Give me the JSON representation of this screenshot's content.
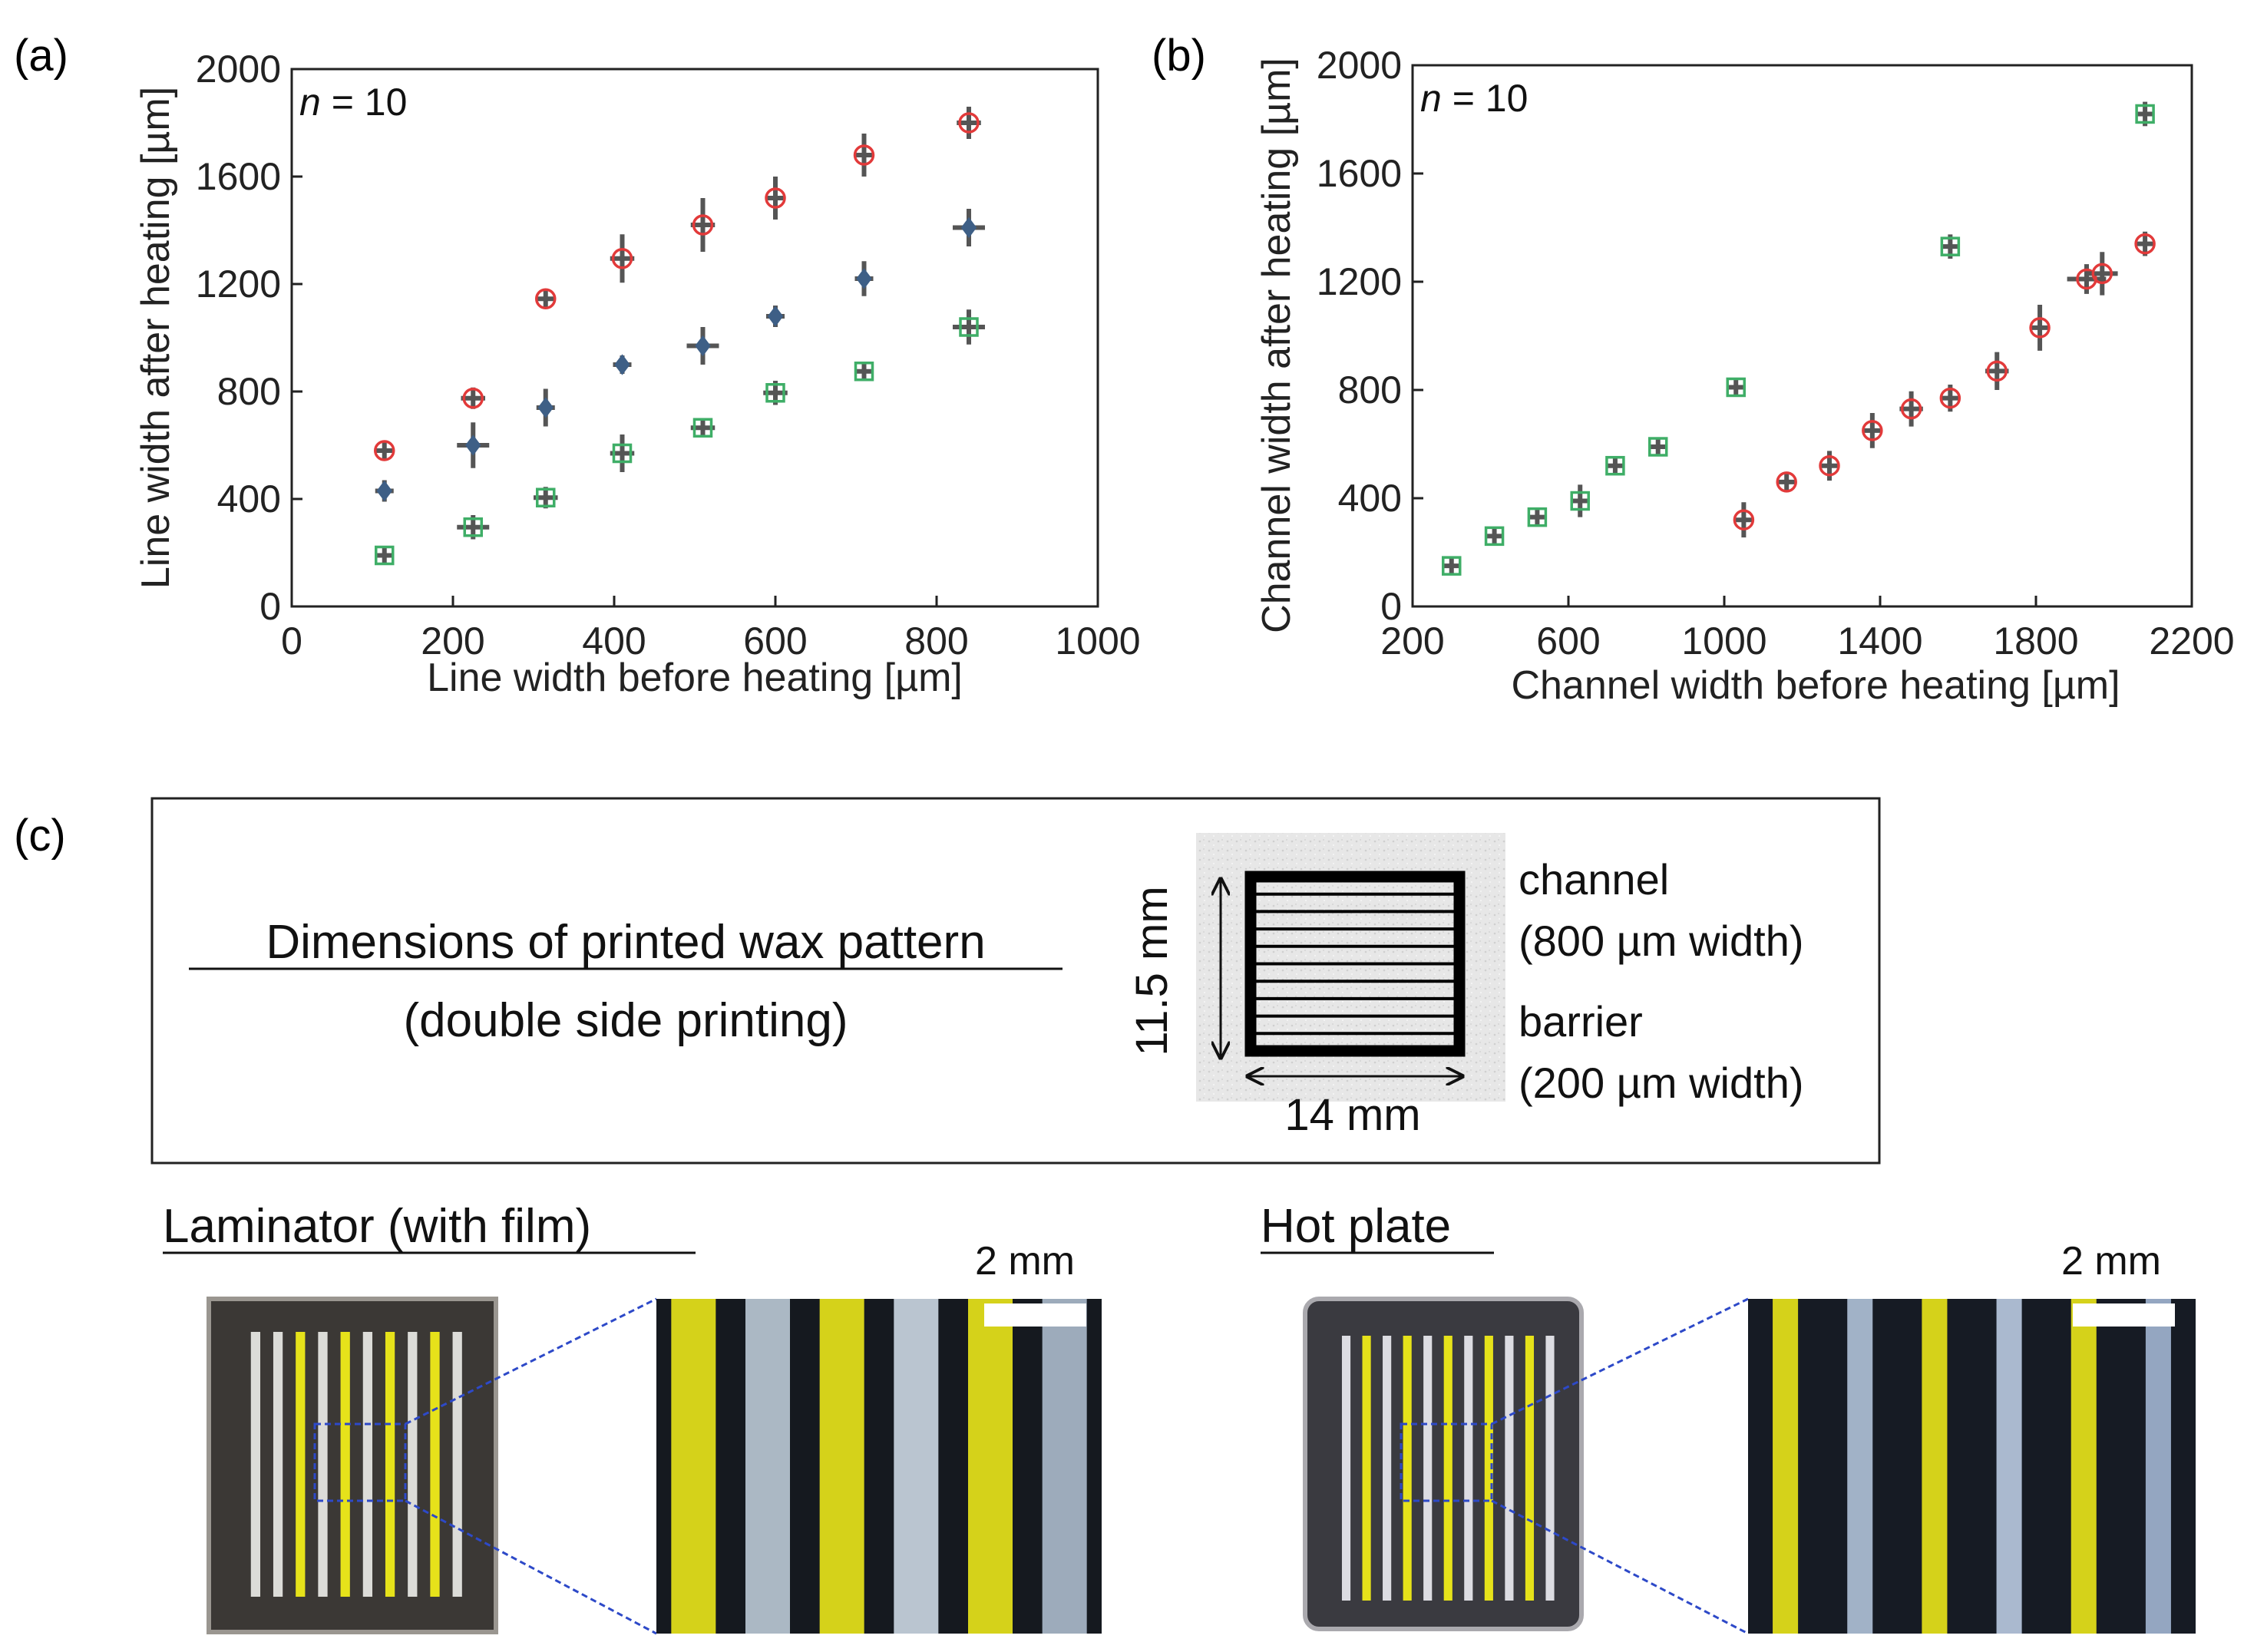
{
  "panels": {
    "a": "(a)",
    "b": "(b)",
    "c": "(c)"
  },
  "colors": {
    "red": "#e23a3a",
    "blue": "#3e5f86",
    "green": "#3fae67",
    "errorbar": "#555555",
    "yellow": "#e6e21a"
  },
  "chart_data": [
    {
      "id": "a",
      "type": "scatter",
      "annotation_prefix": "n",
      "annotation_suffix": " = 10",
      "xlabel": "Line width before heating [µm]",
      "ylabel": "Line width after heating [µm]",
      "xlim": [
        0,
        1000
      ],
      "ylim": [
        0,
        2000
      ],
      "xticks": [
        "0",
        "200",
        "400",
        "600",
        "800",
        "1000"
      ],
      "yticks": [
        "0",
        "400",
        "800",
        "1200",
        "1600",
        "2000"
      ],
      "series": [
        {
          "name": "red circles",
          "marker": "circle",
          "color": "red",
          "points": [
            [
              115,
              580,
              0,
              25
            ],
            [
              225,
              775,
              15,
              40
            ],
            [
              315,
              1145,
              0,
              35
            ],
            [
              410,
              1295,
              15,
              90
            ],
            [
              510,
              1420,
              15,
              100
            ],
            [
              600,
              1520,
              0,
              80
            ],
            [
              710,
              1680,
              0,
              80
            ],
            [
              840,
              1800,
              15,
              60
            ]
          ]
        },
        {
          "name": "blue diamonds",
          "marker": "diamond",
          "color": "blue",
          "points": [
            [
              115,
              430,
              0,
              40
            ],
            [
              225,
              600,
              20,
              85
            ],
            [
              315,
              740,
              10,
              70
            ],
            [
              410,
              900,
              0,
              20
            ],
            [
              510,
              970,
              20,
              70
            ],
            [
              600,
              1080,
              0,
              40
            ],
            [
              710,
              1220,
              0,
              65
            ],
            [
              840,
              1410,
              20,
              70
            ]
          ]
        },
        {
          "name": "green squares",
          "marker": "square",
          "color": "green",
          "points": [
            [
              115,
              190,
              0,
              20
            ],
            [
              225,
              295,
              20,
              45
            ],
            [
              315,
              405,
              15,
              40
            ],
            [
              410,
              570,
              15,
              70
            ],
            [
              510,
              665,
              15,
              35
            ],
            [
              600,
              795,
              15,
              45
            ],
            [
              710,
              875,
              0,
              20
            ],
            [
              840,
              1040,
              20,
              65
            ]
          ]
        }
      ]
    },
    {
      "id": "b",
      "type": "scatter",
      "annotation_prefix": "n",
      "annotation_suffix": " = 10",
      "xlabel": "Channel width before heating [µm]",
      "ylabel": "Channel width after heating [µm]",
      "xlim": [
        200,
        2200
      ],
      "ylim": [
        0,
        2000
      ],
      "xticks": [
        "200",
        "600",
        "1000",
        "1400",
        "1800",
        "2200"
      ],
      "yticks": [
        "0",
        "400",
        "800",
        "1200",
        "1600",
        "2000"
      ],
      "series": [
        {
          "name": "green squares",
          "marker": "square",
          "color": "green",
          "points": [
            [
              300,
              150,
              15,
              30
            ],
            [
              410,
              260,
              20,
              25
            ],
            [
              520,
              330,
              20,
              35
            ],
            [
              630,
              390,
              20,
              60
            ],
            [
              720,
              520,
              20,
              35
            ],
            [
              830,
              590,
              20,
              25
            ],
            [
              1030,
              810,
              20,
              30
            ],
            [
              1580,
              1330,
              20,
              45
            ],
            [
              2080,
              1820,
              20,
              45
            ]
          ]
        },
        {
          "name": "red circles",
          "marker": "circle",
          "color": "red",
          "points": [
            [
              1050,
              320,
              20,
              65
            ],
            [
              1160,
              460,
              0,
              25
            ],
            [
              1270,
              520,
              20,
              55
            ],
            [
              1380,
              650,
              20,
              65
            ],
            [
              1480,
              730,
              30,
              65
            ],
            [
              1580,
              770,
              20,
              50
            ],
            [
              1700,
              870,
              30,
              70
            ],
            [
              1810,
              1030,
              0,
              85
            ],
            [
              1930,
              1210,
              50,
              55
            ],
            [
              1970,
              1230,
              40,
              80
            ],
            [
              2080,
              1340,
              20,
              45
            ]
          ]
        }
      ]
    }
  ],
  "schematic": {
    "title_line1": "Dimensions of printed wax pattern",
    "title_line2": "(double side printing)",
    "height_label": "11.5 mm",
    "width_label": "14 mm",
    "channel_label": "channel",
    "channel_width": "(800 µm width)",
    "barrier_label": "barrier",
    "barrier_width": "(200 µm width)"
  },
  "photos": {
    "laminator_title": "Laminator (with film)",
    "hotplate_title": "Hot plate",
    "scale_left": "2 mm",
    "scale_right": "2 mm"
  }
}
